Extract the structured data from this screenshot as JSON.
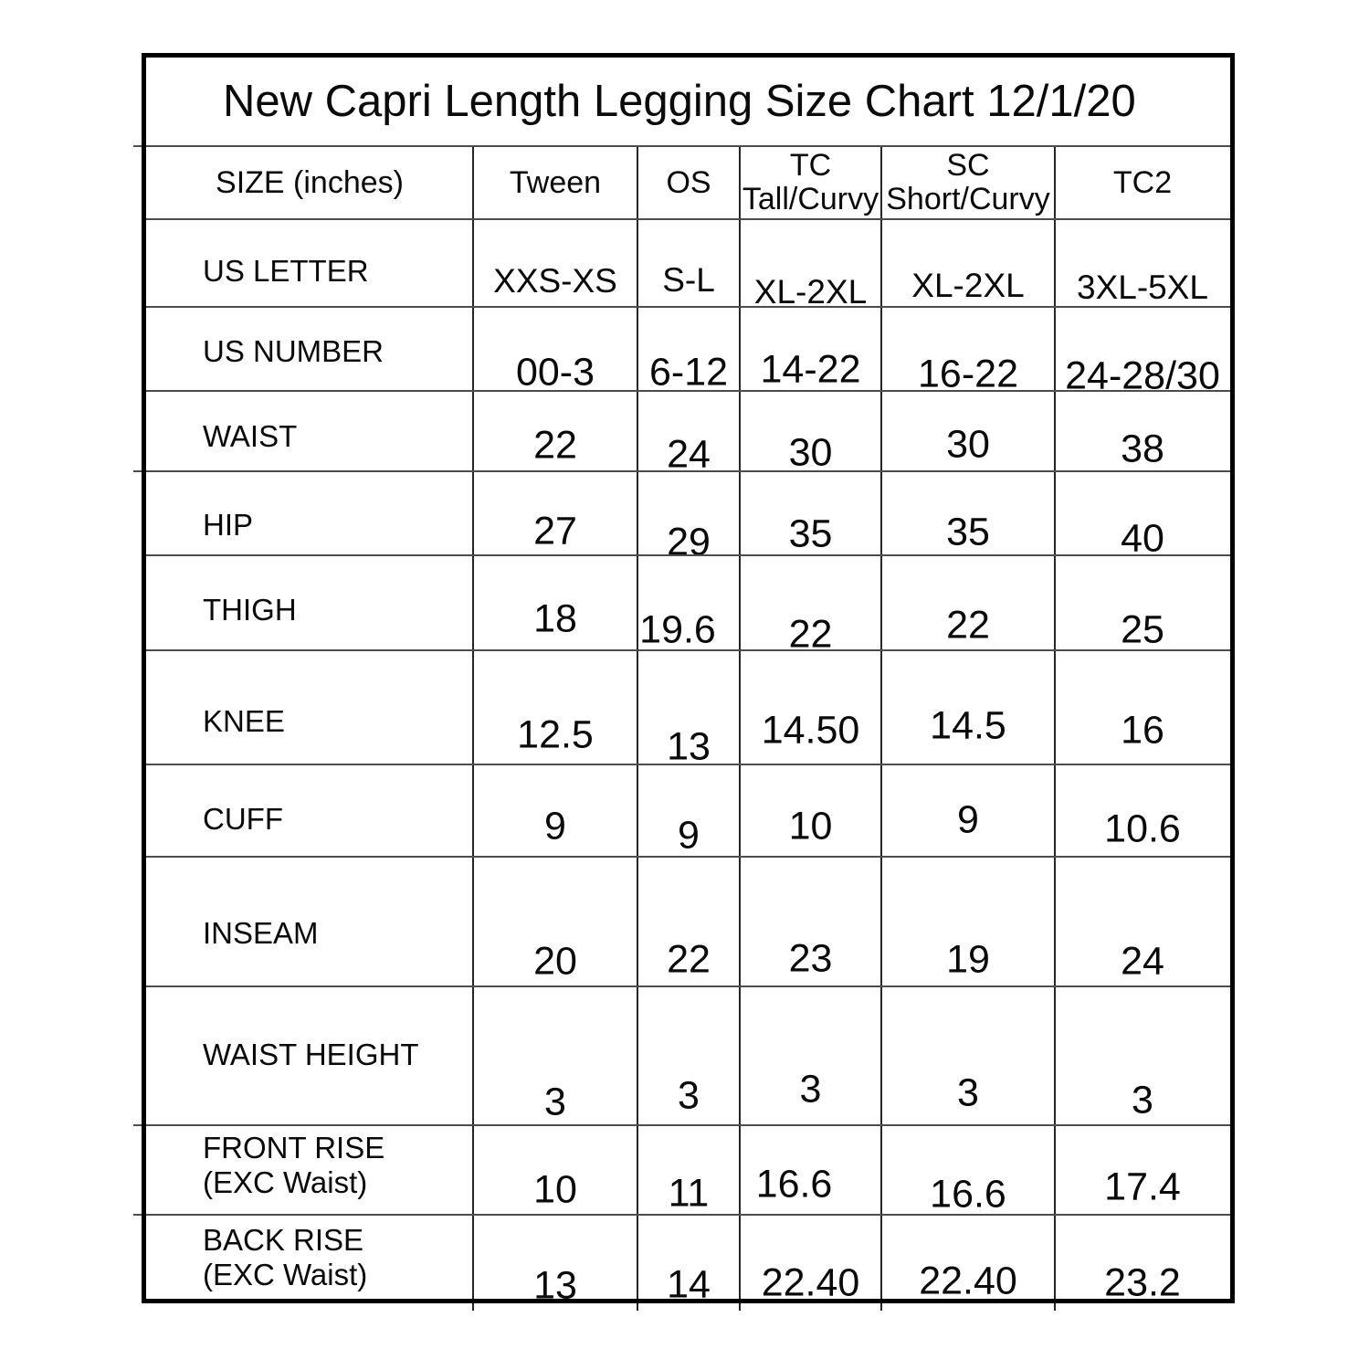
{
  "title": "New Capri Length Legging Size Chart 12/1/20",
  "units_note": "SIZE (inches)",
  "table": {
    "columns": [
      {
        "line1": "SIZE (inches)",
        "line2": ""
      },
      {
        "line1": "Tween",
        "line2": ""
      },
      {
        "line1": "OS",
        "line2": ""
      },
      {
        "line1": "TC",
        "line2": "Tall/Curvy"
      },
      {
        "line1": "SC",
        "line2": "Short/Curvy"
      },
      {
        "line1": "TC2",
        "line2": ""
      }
    ],
    "rows": [
      {
        "label": "US LETTER",
        "label2": "",
        "values": [
          "XXS-XS",
          "S-L",
          "XL-2XL",
          "XL-2XL",
          "3XL-5XL"
        ]
      },
      {
        "label": "US NUMBER",
        "label2": "",
        "values": [
          "00-3",
          "6-12",
          "14-22",
          "16-22",
          "24-28/30"
        ]
      },
      {
        "label": "WAIST",
        "label2": "",
        "values": [
          "22",
          "24",
          "30",
          "30",
          "38"
        ]
      },
      {
        "label": "HIP",
        "label2": "",
        "values": [
          "27",
          "29",
          "35",
          "35",
          "40"
        ]
      },
      {
        "label": "THIGH",
        "label2": "",
        "values": [
          "18",
          "19.6",
          "22",
          "22",
          "25"
        ]
      },
      {
        "label": "KNEE",
        "label2": "",
        "values": [
          "12.5",
          "13",
          "14.50",
          "14.5",
          "16"
        ]
      },
      {
        "label": "CUFF",
        "label2": "",
        "values": [
          "9",
          "9",
          "10",
          "9",
          "10.6"
        ]
      },
      {
        "label": "INSEAM",
        "label2": "",
        "values": [
          "20",
          "22",
          "23",
          "19",
          "24"
        ]
      },
      {
        "label": "WAIST HEIGHT",
        "label2": "",
        "values": [
          "3",
          "3",
          "3",
          "3",
          "3"
        ]
      },
      {
        "label": "FRONT RISE",
        "label2": "(EXC Waist)",
        "values": [
          "10",
          "11",
          "16.6",
          "16.6",
          "17.4"
        ]
      },
      {
        "label": "BACK RISE",
        "label2": "(EXC Waist)",
        "values": [
          "13",
          "14",
          "22.40",
          "22.40",
          "23.2"
        ]
      }
    ]
  },
  "colors": {
    "background": "#ffffff",
    "text": "#000000",
    "border": "#000000",
    "grid_line": "#4d4d4d"
  }
}
